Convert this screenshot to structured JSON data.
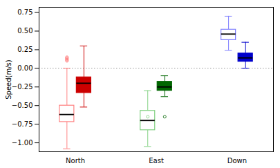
{
  "chart_data": {
    "type": "box",
    "ylabel": "Speed(m/s)",
    "categories": [
      "North",
      "East",
      "Down"
    ],
    "series": [
      {
        "colors": [
          "#ff8080",
          "#80d080",
          "#8080ff"
        ],
        "values": [
          {
            "med": -0.62,
            "q1": -0.72,
            "q3": -0.5,
            "whislo": -1.08,
            "whishi": 0.0,
            "fliers": [
              0.15,
              0.14,
              0.13,
              0.12,
              0.11,
              0.1
            ]
          },
          {
            "med": -0.7,
            "q1": -0.83,
            "q3": -0.57,
            "whislo": -1.05,
            "whishi": -0.3,
            "fliers": [
              -0.65
            ]
          },
          {
            "med": 0.46,
            "q1": 0.38,
            "q3": 0.52,
            "whislo": 0.24,
            "whishi": 0.7,
            "fliers": []
          }
        ]
      },
      {
        "colors": [
          "#cc0000",
          "#006600",
          "#0000cc"
        ],
        "values": [
          {
            "med": -0.2,
            "q1": -0.33,
            "q3": -0.12,
            "whislo": -0.52,
            "whishi": 0.3,
            "fliers": []
          },
          {
            "med": -0.25,
            "q1": -0.3,
            "q3": -0.18,
            "whislo": -0.38,
            "whishi": -0.1,
            "fliers": [
              -0.65
            ]
          },
          {
            "med": 0.14,
            "q1": 0.09,
            "q3": 0.2,
            "whislo": 0.0,
            "whishi": 0.35,
            "fliers": []
          }
        ]
      }
    ],
    "hline": 0.0,
    "ylim": [
      -1.12,
      0.82
    ],
    "yticks": [
      {
        "value": -1.0,
        "label": "−1.00"
      },
      {
        "value": -0.75,
        "label": "−0.75"
      },
      {
        "value": -0.5,
        "label": "−0.50"
      },
      {
        "value": -0.25,
        "label": "−0.25"
      },
      {
        "value": 0.0,
        "label": "0.00"
      },
      0.25,
      {
        "value": 0.5,
        "label": "0.50"
      },
      0.75
    ]
  }
}
